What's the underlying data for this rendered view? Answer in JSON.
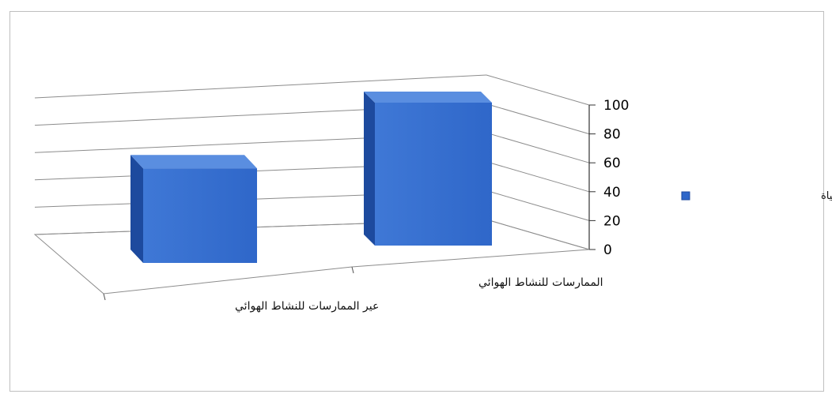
{
  "chart_data": {
    "type": "bar",
    "categories": [
      "عير الممارسات للنشاط الهوائي",
      "الممارسات للنشاط الهوائي"
    ],
    "series": [
      {
        "name": "مقياس جودة الحياة",
        "values": [
          53,
          100
        ]
      }
    ],
    "ylim": [
      0,
      100
    ],
    "yticks": [
      0,
      20,
      40,
      60,
      80,
      100
    ],
    "legend_position": "right",
    "grid": true,
    "colors": {
      "bar_front": "#2f67c9",
      "bar_side": "#1d4a9e",
      "bar_top": "#5a8ee0",
      "grid": "#8c8c8c"
    }
  }
}
